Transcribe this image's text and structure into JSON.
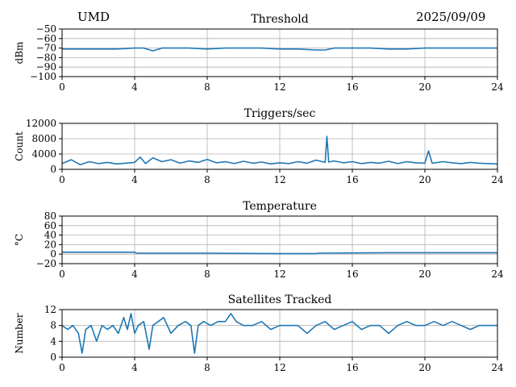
{
  "header": {
    "station": "UMD",
    "date": "2025/09/09"
  },
  "colors": {
    "series": "#1f77b4",
    "grid": "#b0b0b0",
    "axis": "#000000"
  },
  "chart_data": [
    {
      "type": "line",
      "title": "Threshold",
      "ylabel": "dBm",
      "xlabel": "",
      "xlim": [
        0,
        24
      ],
      "ylim": [
        -100,
        -50
      ],
      "xticks": [
        0,
        4,
        8,
        12,
        16,
        20,
        24
      ],
      "yticks": [
        -100,
        -90,
        -80,
        -70,
        -60,
        -50
      ],
      "yticklabels": [
        "−100",
        "−90",
        "−80",
        "−70",
        "−60",
        "−50"
      ],
      "grid": true,
      "series": [
        {
          "x": [
            0,
            1,
            2,
            3,
            4,
            4.5,
            5,
            5.5,
            6,
            7,
            8,
            9,
            10,
            11,
            12,
            13,
            14,
            14.5,
            15,
            16,
            17,
            18,
            19,
            20,
            21,
            22,
            23,
            24
          ],
          "y": [
            -71,
            -71,
            -71,
            -71,
            -70,
            -70,
            -73,
            -70,
            -70,
            -70,
            -71,
            -70,
            -70,
            -70,
            -71,
            -71,
            -72,
            -72,
            -70,
            -70,
            -70,
            -71,
            -71,
            -70,
            -70,
            -70,
            -70,
            -70
          ]
        }
      ]
    },
    {
      "type": "line",
      "title": "Triggers/sec",
      "ylabel": "Count",
      "xlabel": "",
      "xlim": [
        0,
        24
      ],
      "ylim": [
        0,
        12000
      ],
      "xticks": [
        0,
        4,
        8,
        12,
        16,
        20,
        24
      ],
      "yticks": [
        0,
        4000,
        8000,
        12000
      ],
      "yticklabels": [
        "0",
        "4000",
        "8000",
        "12000"
      ],
      "grid": true,
      "series": [
        {
          "x": [
            0,
            0.5,
            1,
            1.5,
            2,
            2.5,
            3,
            3.5,
            4,
            4.3,
            4.6,
            5,
            5.5,
            6,
            6.5,
            7,
            7.5,
            8,
            8.5,
            9,
            9.5,
            10,
            10.5,
            11,
            11.5,
            12,
            12.5,
            13,
            13.5,
            14,
            14.5,
            14.6,
            14.7,
            15,
            15.5,
            16,
            16.5,
            17,
            17.5,
            18,
            18.5,
            19,
            19.5,
            20,
            20.2,
            20.4,
            21,
            21.5,
            22,
            22.5,
            23,
            23.5,
            24
          ],
          "y": [
            1500,
            2500,
            1200,
            2000,
            1500,
            1800,
            1400,
            1600,
            1800,
            3200,
            1500,
            3000,
            2000,
            2500,
            1600,
            2200,
            1800,
            2600,
            1700,
            2000,
            1500,
            2100,
            1600,
            1900,
            1400,
            1700,
            1500,
            2000,
            1600,
            2400,
            1800,
            8600,
            1900,
            2200,
            1700,
            2000,
            1500,
            1800,
            1600,
            2100,
            1500,
            2000,
            1700,
            1600,
            4800,
            1600,
            2000,
            1700,
            1500,
            1800,
            1600,
            1500,
            1400
          ]
        }
      ]
    },
    {
      "type": "line",
      "title": "Temperature",
      "ylabel": "°C",
      "xlabel": "",
      "xlim": [
        0,
        24
      ],
      "ylim": [
        -20,
        80
      ],
      "xticks": [
        0,
        4,
        8,
        12,
        16,
        20,
        24
      ],
      "yticks": [
        -20,
        0,
        20,
        40,
        60,
        80
      ],
      "yticklabels": [
        "−20",
        "0",
        "20",
        "40",
        "60",
        "80"
      ],
      "grid": true,
      "series": [
        {
          "x": [
            0,
            4,
            4.1,
            8,
            12,
            14,
            14.1,
            18,
            22,
            24
          ],
          "y": [
            4,
            4,
            2,
            2,
            1,
            1,
            2,
            3,
            3,
            3
          ]
        }
      ]
    },
    {
      "type": "line",
      "title": "Satellites Tracked",
      "ylabel": "Number",
      "xlabel": "",
      "xlim": [
        0,
        24
      ],
      "ylim": [
        0,
        12
      ],
      "xticks": [
        0,
        4,
        8,
        12,
        16,
        20,
        24
      ],
      "yticks": [
        0,
        4,
        8,
        12
      ],
      "yticklabels": [
        "0",
        "4",
        "8",
        "12"
      ],
      "grid": true,
      "series": [
        {
          "x": [
            0,
            0.3,
            0.6,
            0.9,
            1.1,
            1.3,
            1.6,
            1.9,
            2.2,
            2.5,
            2.8,
            3.1,
            3.4,
            3.6,
            3.8,
            4.0,
            4.2,
            4.5,
            4.8,
            5.0,
            5.3,
            5.6,
            6.0,
            6.4,
            6.8,
            7.1,
            7.3,
            7.5,
            7.8,
            8.2,
            8.6,
            9.0,
            9.3,
            9.6,
            10.0,
            10.5,
            11.0,
            11.5,
            12.0,
            12.5,
            13.0,
            13.5,
            14.0,
            14.5,
            15.0,
            15.5,
            16.0,
            16.5,
            17.0,
            17.5,
            18.0,
            18.5,
            19.0,
            19.5,
            20.0,
            20.5,
            21.0,
            21.5,
            22.0,
            22.5,
            23.0,
            23.5,
            24.0
          ],
          "y": [
            8,
            7,
            8,
            6,
            1,
            7,
            8,
            4,
            8,
            7,
            8,
            6,
            10,
            7,
            11,
            6,
            8,
            9,
            2,
            8,
            9,
            10,
            6,
            8,
            9,
            8,
            1,
            8,
            9,
            8,
            9,
            9,
            11,
            9,
            8,
            8,
            9,
            7,
            8,
            8,
            8,
            6,
            8,
            9,
            7,
            8,
            9,
            7,
            8,
            8,
            6,
            8,
            9,
            8,
            8,
            9,
            8,
            9,
            8,
            7,
            8,
            8,
            8
          ]
        }
      ]
    }
  ]
}
